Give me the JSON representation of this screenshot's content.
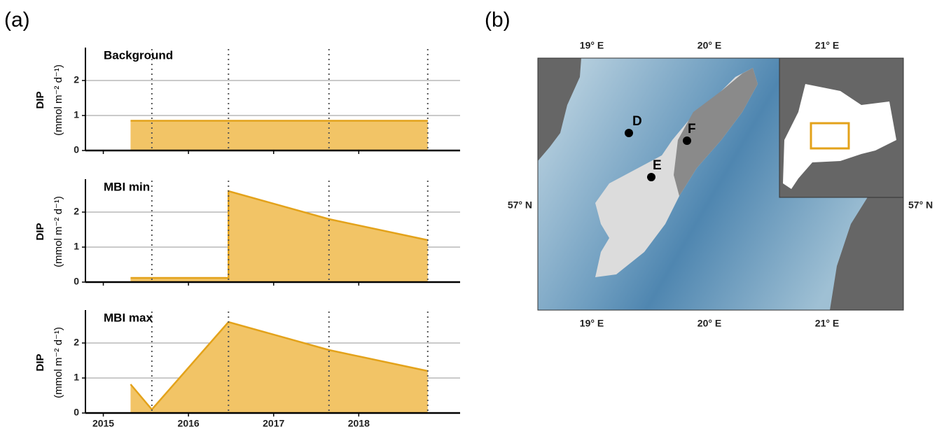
{
  "panels": [
    "(a)",
    "(b)"
  ],
  "chart_data": [
    {
      "type": "area",
      "title": "Background",
      "ylabel": "DIP",
      "yunit": "(mmol m⁻² d⁻¹)",
      "x": [
        2015.32,
        2018.81
      ],
      "values": [
        0.85,
        0.85
      ],
      "xlim": [
        2014.79,
        2019.19
      ],
      "ylim": [
        0,
        2.9
      ],
      "yticks": [
        0,
        1,
        2
      ],
      "vlines": [
        2015.57,
        2016.47,
        2017.65,
        2018.81
      ],
      "color": "#f2c466",
      "line_color": "#e3a21a",
      "grid": true
    },
    {
      "type": "area",
      "title": "MBI min",
      "ylabel": "DIP",
      "yunit": "(mmol m⁻² d⁻¹)",
      "x": [
        2015.32,
        2016.47,
        2016.47,
        2017.65,
        2018.81
      ],
      "values": [
        0.12,
        0.12,
        2.6,
        1.8,
        1.2
      ],
      "xlim": [
        2014.79,
        2019.19
      ],
      "ylim": [
        0,
        2.9
      ],
      "yticks": [
        0,
        1,
        2
      ],
      "vlines": [
        2015.57,
        2016.47,
        2017.65,
        2018.81
      ],
      "color": "#f2c466",
      "line_color": "#e3a21a",
      "grid": true
    },
    {
      "type": "area",
      "title": "MBI max",
      "ylabel": "DIP",
      "yunit": "(mmol m⁻² d⁻¹)",
      "x": [
        2015.32,
        2015.57,
        2016.47,
        2017.65,
        2018.81
      ],
      "values": [
        0.82,
        0.1,
        2.6,
        1.8,
        1.2
      ],
      "xlim": [
        2014.79,
        2019.19
      ],
      "ylim": [
        0,
        2.9
      ],
      "yticks": [
        0,
        1,
        2
      ],
      "xticks": [
        2015,
        2016,
        2017,
        2018
      ],
      "vlines": [
        2015.57,
        2016.47,
        2017.65,
        2018.81
      ],
      "color": "#f2c466",
      "line_color": "#e3a21a",
      "grid": true
    }
  ],
  "map": {
    "lon_labels": [
      "19° E",
      "20° E",
      "21° E"
    ],
    "lat_labels": [
      "57° N"
    ],
    "sites": [
      "D",
      "E",
      "F"
    ]
  }
}
